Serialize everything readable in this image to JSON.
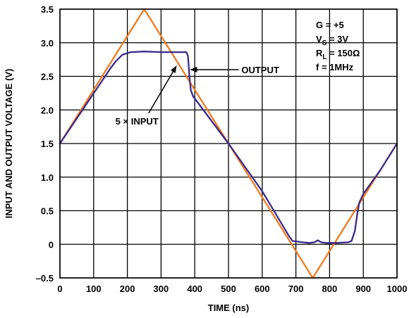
{
  "chart_data": {
    "type": "line",
    "xlabel": "TIME (ns)",
    "ylabel": "INPUT AND OUTPUT VOLTAGE (V)",
    "xlim": [
      0,
      1000
    ],
    "ylim": [
      -0.5,
      3.5
    ],
    "x_ticks": [
      0,
      100,
      200,
      300,
      400,
      500,
      600,
      700,
      800,
      900,
      1000
    ],
    "x_tick_labels": [
      "0",
      "100",
      "200",
      "300",
      "400",
      "500",
      "600",
      "700",
      "800",
      "900",
      "1000"
    ],
    "y_ticks": [
      -0.5,
      0,
      0.5,
      1.0,
      1.5,
      2.0,
      2.5,
      3.0,
      3.5
    ],
    "y_tick_labels": [
      "–0.5",
      "0",
      "0.5",
      "1.0",
      "1.5",
      "2.0",
      "2.5",
      "3.0",
      "3.5"
    ],
    "grid": true,
    "conditions": [
      {
        "main": "G = +5",
        "sub": "",
        "tail": ""
      },
      {
        "main": "V",
        "sub": "S",
        "tail": " = 3V"
      },
      {
        "main": "R",
        "sub": "L",
        "tail": " = 150Ω"
      },
      {
        "main": "f = 1MHz",
        "sub": "",
        "tail": ""
      }
    ],
    "series": [
      {
        "name": "5 × INPUT",
        "color": "#f07a1e",
        "points": [
          [
            0,
            1.5
          ],
          [
            250,
            3.5
          ],
          [
            750,
            -0.5
          ],
          [
            1000,
            1.5
          ]
        ]
      },
      {
        "name": "OUTPUT",
        "color": "#3a2a8c",
        "points": [
          [
            0,
            1.5
          ],
          [
            150,
            2.62
          ],
          [
            165,
            2.72
          ],
          [
            185,
            2.82
          ],
          [
            210,
            2.86
          ],
          [
            250,
            2.87
          ],
          [
            300,
            2.86
          ],
          [
            340,
            2.86
          ],
          [
            375,
            2.86
          ],
          [
            380,
            2.8
          ],
          [
            384,
            2.5
          ],
          [
            388,
            2.3
          ],
          [
            395,
            2.2
          ],
          [
            400,
            2.17
          ],
          [
            500,
            1.5
          ],
          [
            600,
            0.79
          ],
          [
            680,
            0.12
          ],
          [
            690,
            0.05
          ],
          [
            720,
            0.03
          ],
          [
            740,
            0.02
          ],
          [
            755,
            0.03
          ],
          [
            765,
            0.06
          ],
          [
            775,
            0.03
          ],
          [
            790,
            0.02
          ],
          [
            820,
            0.02
          ],
          [
            855,
            0.03
          ],
          [
            865,
            0.05
          ],
          [
            875,
            0.2
          ],
          [
            882,
            0.45
          ],
          [
            888,
            0.62
          ],
          [
            900,
            0.75
          ],
          [
            950,
            1.1
          ],
          [
            1000,
            1.5
          ]
        ]
      }
    ],
    "callouts": [
      {
        "label": "OUTPUT",
        "series": "OUTPUT",
        "tip": [
          388,
          2.6
        ],
        "tail": [
          530,
          2.6
        ]
      },
      {
        "label": "5 × INPUT",
        "series": "5 × INPUT",
        "tip": [
          345,
          2.65
        ],
        "tail": [
          263,
          1.95
        ]
      }
    ]
  }
}
